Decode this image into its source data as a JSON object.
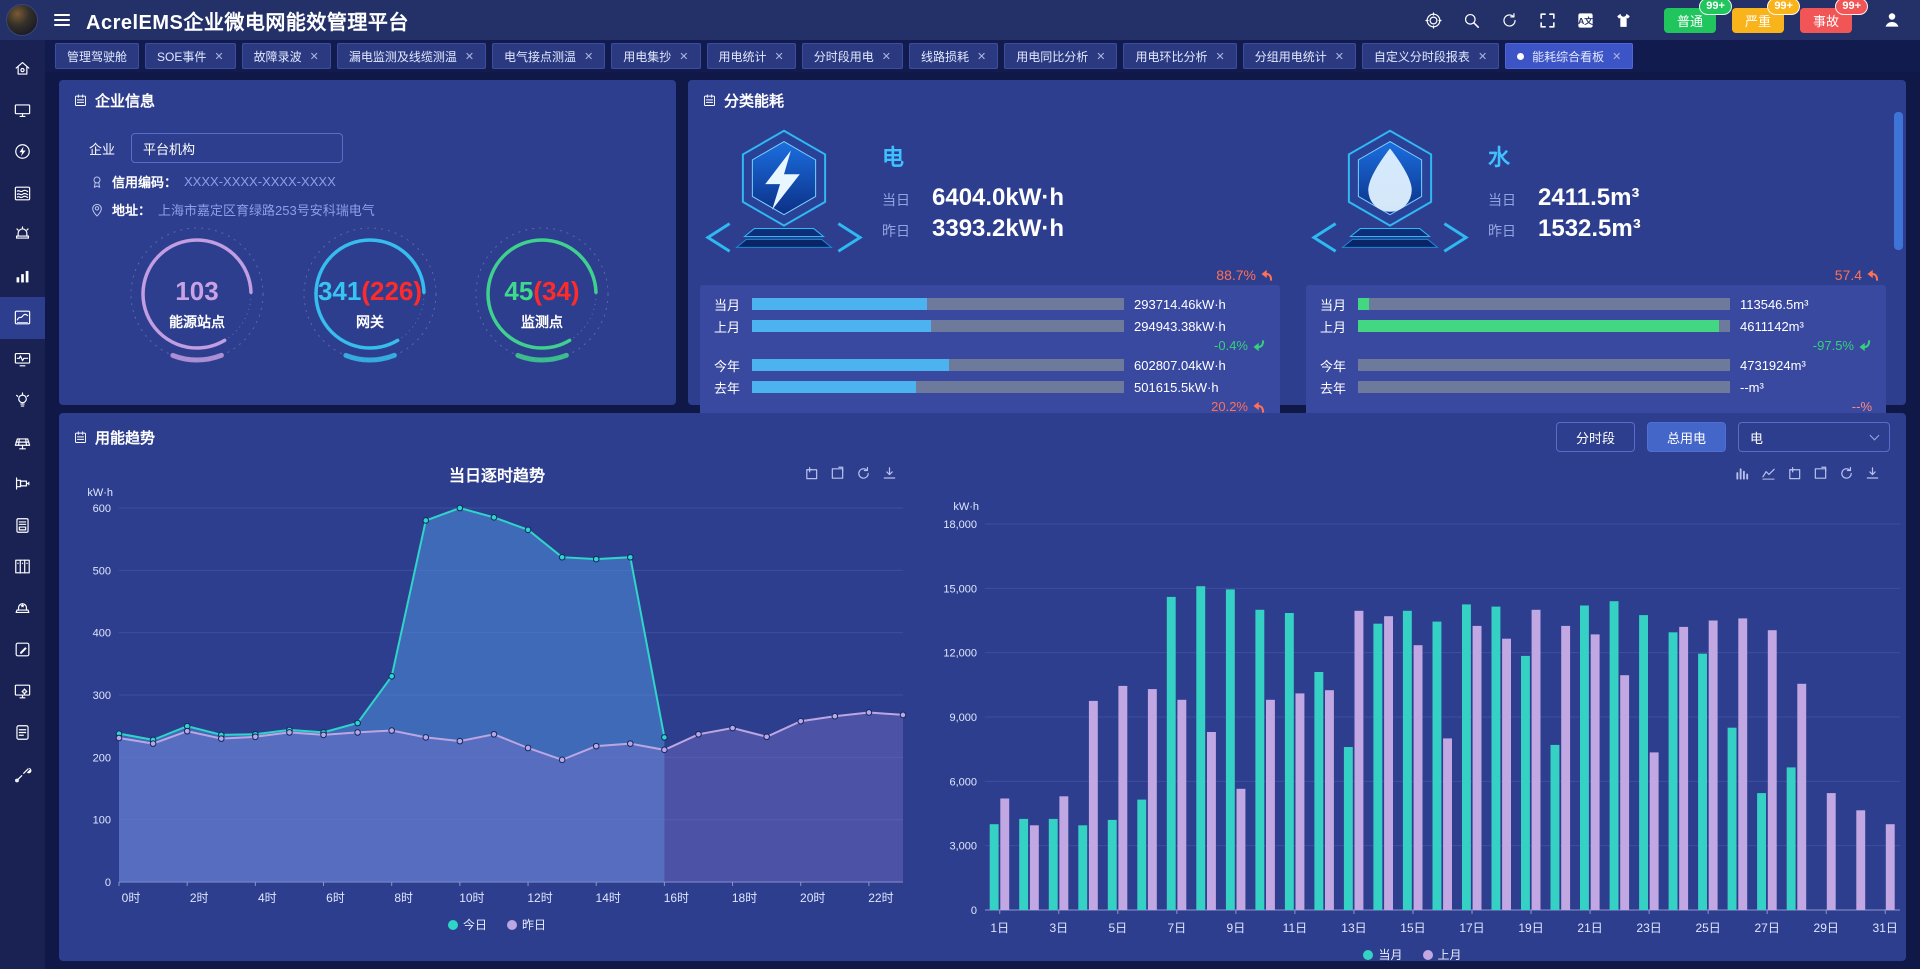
{
  "header": {
    "title": "AcrelEMS企业微电网能效管理平台",
    "icons": [
      "aim",
      "search",
      "refresh",
      "fullscreen",
      "translate",
      "theme"
    ],
    "badges": [
      {
        "label": "普通",
        "count": "99+",
        "color": "#21c55d"
      },
      {
        "label": "严重",
        "count": "99+",
        "color": "#f9b31b"
      },
      {
        "label": "事故",
        "count": "99+",
        "color": "#f25555"
      }
    ]
  },
  "tabs": [
    {
      "label": "管理驾驶舱",
      "closable": false,
      "active": false
    },
    {
      "label": "SOE事件",
      "closable": true,
      "active": false
    },
    {
      "label": "故障录波",
      "closable": true,
      "active": false
    },
    {
      "label": "漏电监测及线缆测温",
      "closable": true,
      "active": false
    },
    {
      "label": "电气接点测温",
      "closable": true,
      "active": false
    },
    {
      "label": "用电集抄",
      "closable": true,
      "active": false
    },
    {
      "label": "用电统计",
      "closable": true,
      "active": false
    },
    {
      "label": "分时段用电",
      "closable": true,
      "active": false
    },
    {
      "label": "线路损耗",
      "closable": true,
      "active": false
    },
    {
      "label": "用电同比分析",
      "closable": true,
      "active": false
    },
    {
      "label": "用电环比分析",
      "closable": true,
      "active": false
    },
    {
      "label": "分组用电统计",
      "closable": true,
      "active": false
    },
    {
      "label": "自定义分时段报表",
      "closable": true,
      "active": false
    },
    {
      "label": "能耗综合看板",
      "closable": true,
      "active": true
    }
  ],
  "sidebar": {
    "items": [
      "home",
      "screen",
      "energy",
      "wave-report",
      "alarm",
      "bar-stats",
      "trend-chart",
      "monitor-pulse",
      "bulb",
      "solar-panel",
      "pipeline-device",
      "card-reader",
      "cabinet",
      "siren-star",
      "edit",
      "monitor-gear",
      "document",
      "tools"
    ],
    "active_index": 6
  },
  "enterprise": {
    "title": "企业信息",
    "org_label": "企业",
    "org_value": "平台机构",
    "credit_label": "信用编码：",
    "credit_value": "XXXX-XXXX-XXXX-XXXX",
    "address_label": "地址：",
    "address_value": "上海市嘉定区育绿路253号安科瑞电气",
    "gauges": [
      {
        "value": "103",
        "extra": "",
        "label": "能源站点",
        "color": "#c9a2e6",
        "pct": 83
      },
      {
        "value": "341",
        "extra": "(226)",
        "label": "网关",
        "color": "#38c4f2",
        "pct": 83
      },
      {
        "value": "45",
        "extra": "(34)",
        "label": "监测点",
        "color": "#3fd98d",
        "pct": 83
      }
    ],
    "extra_color": "#ff2b2b"
  },
  "category": {
    "title": "分类能耗",
    "sections": [
      {
        "name": "电",
        "icon": "bolt",
        "accent": "#3fc1ff",
        "today_label": "当日",
        "today_value": "6404.0kW·h",
        "yesterday_label": "昨日",
        "yesterday_value": "3393.2kW·h",
        "day_pct": "88.7%",
        "day_dir": "up",
        "bars": [
          {
            "label": "当月",
            "value": "293714.46kW·h",
            "pct": 47,
            "color": "#4cb3f0"
          },
          {
            "label": "上月",
            "value": "294943.38kW·h",
            "pct": 48,
            "color": "#4cb3f0"
          },
          {
            "label": "今年",
            "value": "602807.04kW·h",
            "pct": 53,
            "color": "#4cb3f0"
          },
          {
            "label": "去年",
            "value": "501615.5kW·h",
            "pct": 44,
            "color": "#4cb3f0"
          }
        ],
        "month_pct": "-0.4%",
        "month_dir": "down",
        "year_pct": "20.2%",
        "year_dir": "up"
      },
      {
        "name": "水",
        "icon": "drop",
        "accent": "#3fc1ff",
        "today_label": "当日",
        "today_value": "2411.5m³",
        "yesterday_label": "昨日",
        "yesterday_value": "1532.5m³",
        "day_pct": "57.4",
        "day_dir": "up",
        "bars": [
          {
            "label": "当月",
            "value": "113546.5m³",
            "pct": 3,
            "color": "#43d683"
          },
          {
            "label": "上月",
            "value": "4611142m³",
            "pct": 97,
            "color": "#43d683"
          },
          {
            "label": "今年",
            "value": "4731924m³",
            "pct": 0,
            "color": "#43d683"
          },
          {
            "label": "去年",
            "value": "--m³",
            "pct": 0,
            "color": "#43d683"
          }
        ],
        "month_pct": "-97.5%",
        "month_dir": "down",
        "year_pct": "--%",
        "year_dir": "none"
      }
    ]
  },
  "trend": {
    "title": "用能趋势",
    "btn_period": "分时段",
    "btn_total": "总用电",
    "select_value": "电",
    "toolbox_left": [
      "frame",
      "frame2",
      "refresh",
      "download"
    ],
    "toolbox_right": [
      "bar",
      "line",
      "frame",
      "frame2",
      "refresh",
      "download"
    ]
  },
  "chart_data": [
    {
      "type": "line",
      "title": "当日逐时趋势",
      "ylabel": "kW·h",
      "ylim": [
        0,
        600
      ],
      "y_step": 100,
      "x_tick_labels": [
        "0时",
        "2时",
        "4时",
        "6时",
        "8时",
        "10时",
        "12时",
        "14时",
        "16时",
        "18时",
        "20时",
        "22时"
      ],
      "x_hours": 24,
      "legend_position": "bottom",
      "grid": true,
      "series": [
        {
          "name": "今日",
          "color": "#2ed5c8",
          "fill": "rgba(80,150,225,0.50)",
          "values": [
            238,
            228,
            250,
            236,
            237,
            244,
            240,
            255,
            330,
            580,
            600,
            585,
            565,
            521,
            518,
            521,
            232
          ]
        },
        {
          "name": "昨日",
          "color": "#bca6e2",
          "fill": "rgba(125,115,205,0.38)",
          "values": [
            231,
            222,
            242,
            230,
            233,
            240,
            236,
            240,
            243,
            232,
            226,
            237,
            215,
            196,
            218,
            222,
            212,
            237,
            247,
            233,
            258,
            266,
            272,
            268
          ]
        }
      ]
    },
    {
      "type": "bar",
      "title": "",
      "ylabel": "kW·h",
      "ylim": [
        0,
        18000
      ],
      "y_step": 3000,
      "categories": [
        "1日",
        "2日",
        "3日",
        "4日",
        "5日",
        "6日",
        "7日",
        "8日",
        "9日",
        "10日",
        "11日",
        "12日",
        "13日",
        "14日",
        "15日",
        "16日",
        "17日",
        "18日",
        "19日",
        "20日",
        "21日",
        "22日",
        "23日",
        "24日",
        "25日",
        "26日",
        "27日",
        "28日",
        "29日",
        "30日",
        "31日"
      ],
      "legend_position": "bottom",
      "grid": true,
      "series": [
        {
          "name": "当月",
          "color": "#35d1c5",
          "values": [
            4000,
            4250,
            4250,
            3950,
            4200,
            5150,
            14600,
            15100,
            14950,
            14000,
            13850,
            11100,
            7600,
            13350,
            13950,
            13450,
            14250,
            14150,
            11850,
            7700,
            14200,
            14400,
            13750,
            12950,
            11950,
            8500,
            5450,
            6650,
            null,
            null,
            null
          ]
        },
        {
          "name": "上月",
          "color": "#c2a8e2",
          "values": [
            5200,
            3950,
            5300,
            9750,
            10450,
            10300,
            9800,
            8300,
            5650,
            9800,
            10100,
            10250,
            13950,
            13700,
            12350,
            8000,
            13250,
            12650,
            14000,
            13250,
            12850,
            10950,
            7350,
            13200,
            13500,
            13600,
            13050,
            10550,
            5450,
            4650,
            4000
          ]
        }
      ]
    }
  ]
}
